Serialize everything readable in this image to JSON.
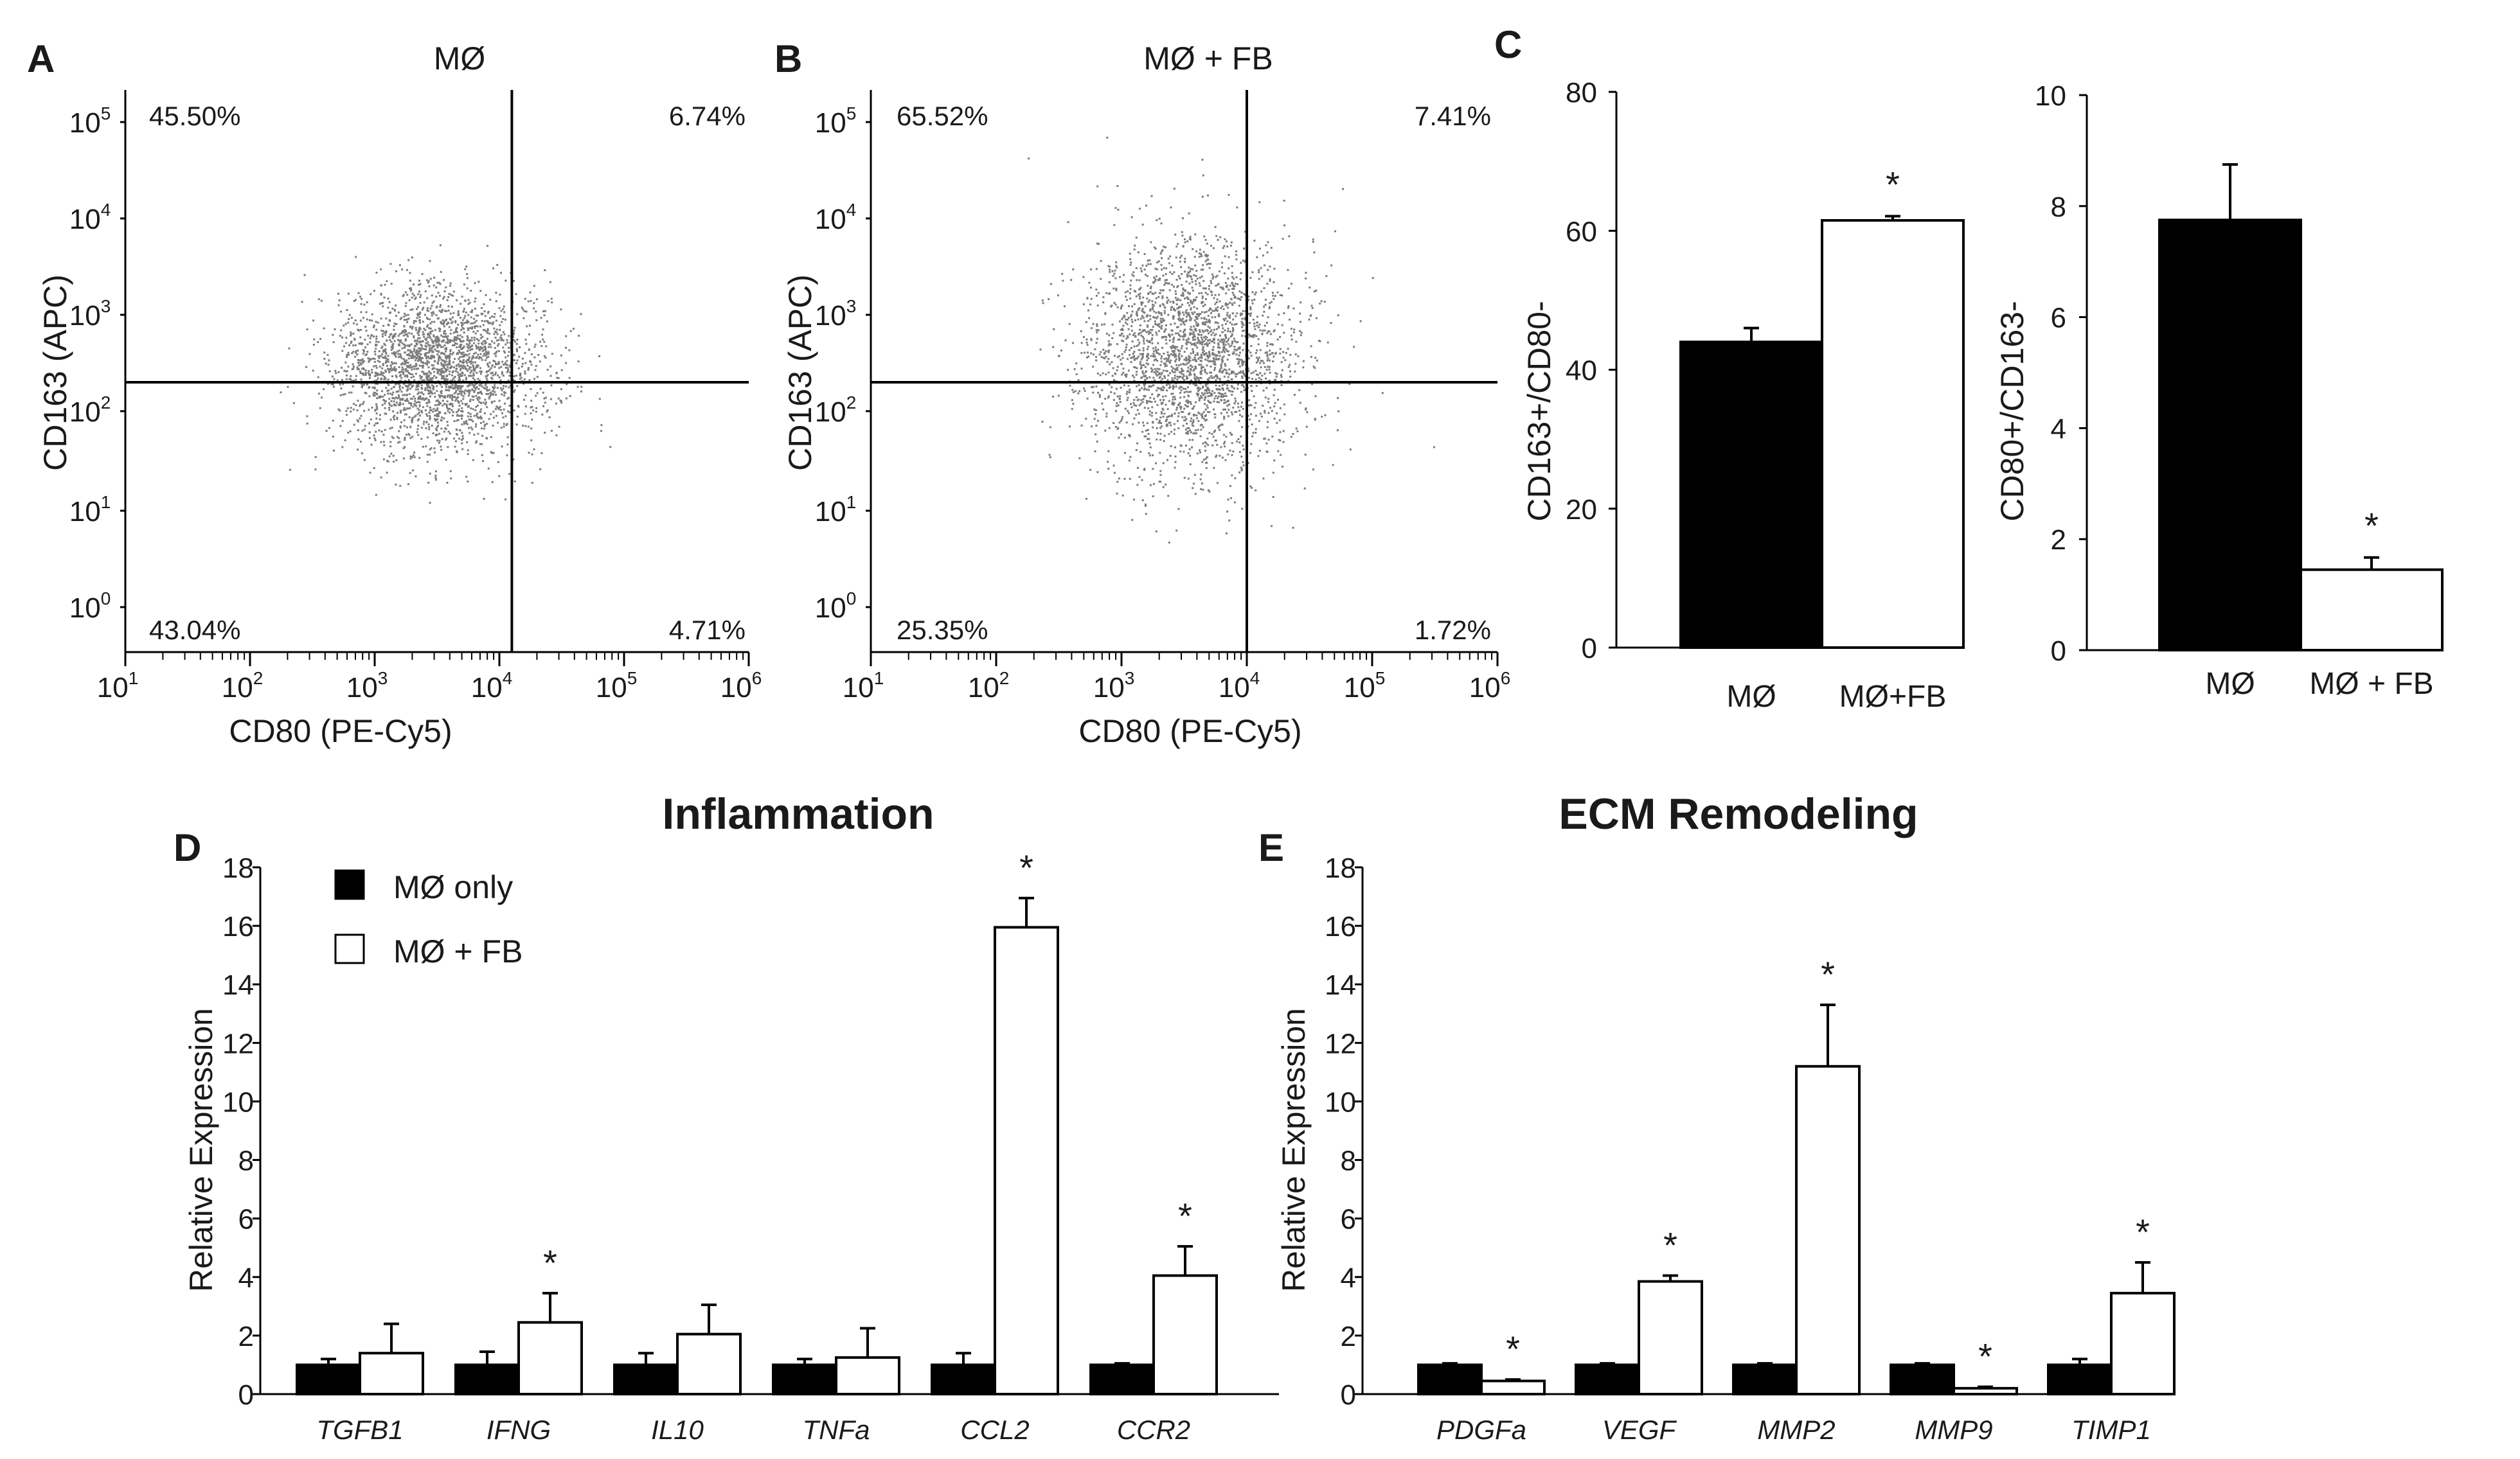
{
  "panels": {
    "A": "A",
    "B": "B",
    "C": "C",
    "D": "D",
    "E": "E"
  },
  "flow_plots": [
    {
      "id": "A",
      "title": "MØ",
      "x_label": "CD80 (PE-Cy5)",
      "y_label": "CD163 (APC)",
      "x_ticks": [
        {
          "base": "10",
          "exp": "1"
        },
        {
          "base": "10",
          "exp": "2"
        },
        {
          "base": "10",
          "exp": "3"
        },
        {
          "base": "10",
          "exp": "4"
        },
        {
          "base": "10",
          "exp": "5"
        },
        {
          "base": "10",
          "exp": "6"
        }
      ],
      "y_ticks": [
        {
          "base": "10",
          "exp": "0"
        },
        {
          "base": "10",
          "exp": "1"
        },
        {
          "base": "10",
          "exp": "2"
        },
        {
          "base": "10",
          "exp": "3"
        },
        {
          "base": "10",
          "exp": "4"
        },
        {
          "base": "10",
          "exp": "5"
        }
      ],
      "quadrants": {
        "upper_left": "45.50%",
        "upper_right": "6.74%",
        "lower_left": "43.04%",
        "lower_right": "4.71%"
      },
      "gate_x_log": 4.1,
      "gate_y_log": 2.3,
      "cloud": {
        "center_x_log": 3.5,
        "center_y_log": 2.45,
        "spread_x": 0.42,
        "spread_y": 0.42,
        "n_points": 2600,
        "seed": 7
      }
    },
    {
      "id": "B",
      "title": "MØ + FB",
      "x_label": "CD80 (PE-Cy5)",
      "y_label": "CD163 (APC)",
      "x_ticks": [
        {
          "base": "10",
          "exp": "1"
        },
        {
          "base": "10",
          "exp": "2"
        },
        {
          "base": "10",
          "exp": "3"
        },
        {
          "base": "10",
          "exp": "4"
        },
        {
          "base": "10",
          "exp": "5"
        },
        {
          "base": "10",
          "exp": "6"
        }
      ],
      "y_ticks": [
        {
          "base": "10",
          "exp": "0"
        },
        {
          "base": "10",
          "exp": "1"
        },
        {
          "base": "10",
          "exp": "2"
        },
        {
          "base": "10",
          "exp": "3"
        },
        {
          "base": "10",
          "exp": "4"
        },
        {
          "base": "10",
          "exp": "5"
        }
      ],
      "quadrants": {
        "upper_left": "65.52%",
        "upper_right": "7.41%",
        "lower_left": "25.35%",
        "lower_right": "1.72%"
      },
      "gate_x_log": 4.0,
      "gate_y_log": 2.3,
      "cloud": {
        "center_x_log": 3.55,
        "center_y_log": 2.6,
        "spread_x": 0.42,
        "spread_y": 0.6,
        "n_points": 2600,
        "seed": 11
      }
    }
  ],
  "chart_data": [
    {
      "id": "C1",
      "type": "bar",
      "categories": [
        "MØ",
        "MØ+FB"
      ],
      "values": [
        44,
        61.5
      ],
      "errors": [
        2,
        0.6
      ],
      "colors": [
        "#000000",
        "#ffffff"
      ],
      "significance": [
        "",
        "*"
      ],
      "ylabel": "CD163+/CD80-",
      "ylim": [
        0,
        80
      ],
      "yticks": [
        "0",
        "20",
        "40",
        "60",
        "80"
      ]
    },
    {
      "id": "C2",
      "type": "bar",
      "categories": [
        "MØ",
        "MØ + FB"
      ],
      "values": [
        7.75,
        1.45
      ],
      "errors": [
        1.0,
        0.22
      ],
      "colors": [
        "#000000",
        "#ffffff"
      ],
      "significance": [
        "",
        "*"
      ],
      "ylabel": "CD80+/CD163-",
      "ylim": [
        0,
        10
      ],
      "yticks": [
        "0",
        "2",
        "4",
        "6",
        "8",
        "10"
      ]
    },
    {
      "id": "D",
      "type": "bar",
      "title": "Inflammation",
      "categories": [
        "TGFB1",
        "IFNG",
        "IL10",
        "TNFa",
        "CCL2",
        "CCR2"
      ],
      "series": [
        {
          "name": "MØ only",
          "color": "#000000",
          "values": [
            1,
            1,
            1,
            1,
            1,
            1
          ],
          "errors": [
            0.2,
            0.45,
            0.4,
            0.2,
            0.4,
            0.05
          ]
        },
        {
          "name": "MØ + FB",
          "color": "#ffffff",
          "values": [
            1.4,
            2.45,
            2.05,
            1.25,
            15.95,
            4.05
          ],
          "errors": [
            1.0,
            1.0,
            1.0,
            1.0,
            1.0,
            1.0
          ],
          "significance": [
            "",
            "*",
            "",
            "",
            "*",
            "*"
          ]
        }
      ],
      "ylabel": "Relative Expression",
      "ylim": [
        0,
        18
      ],
      "yticks": [
        "0",
        "2",
        "4",
        "6",
        "8",
        "10",
        "12",
        "14",
        "16",
        "18"
      ]
    },
    {
      "id": "E",
      "type": "bar",
      "title": "ECM Remodeling",
      "categories": [
        "PDGFa",
        "VEGF",
        "MMP2",
        "MMP9",
        "TIMP1"
      ],
      "series": [
        {
          "name": "MØ only",
          "color": "#000000",
          "values": [
            1,
            1,
            1,
            1,
            1
          ],
          "errors": [
            0.05,
            0.05,
            0.05,
            0.05,
            0.2
          ]
        },
        {
          "name": "MØ + FB",
          "color": "#ffffff",
          "values": [
            0.45,
            3.85,
            11.2,
            0.2,
            3.45
          ],
          "errors": [
            0.05,
            0.2,
            2.1,
            0.05,
            1.05
          ],
          "significance": [
            "*",
            "*",
            "*",
            "*",
            "*"
          ]
        }
      ],
      "ylabel": "Relative Expression",
      "ylim": [
        0,
        18
      ],
      "yticks": [
        "0",
        "2",
        "4",
        "6",
        "8",
        "10",
        "12",
        "14",
        "16",
        "18"
      ]
    }
  ]
}
